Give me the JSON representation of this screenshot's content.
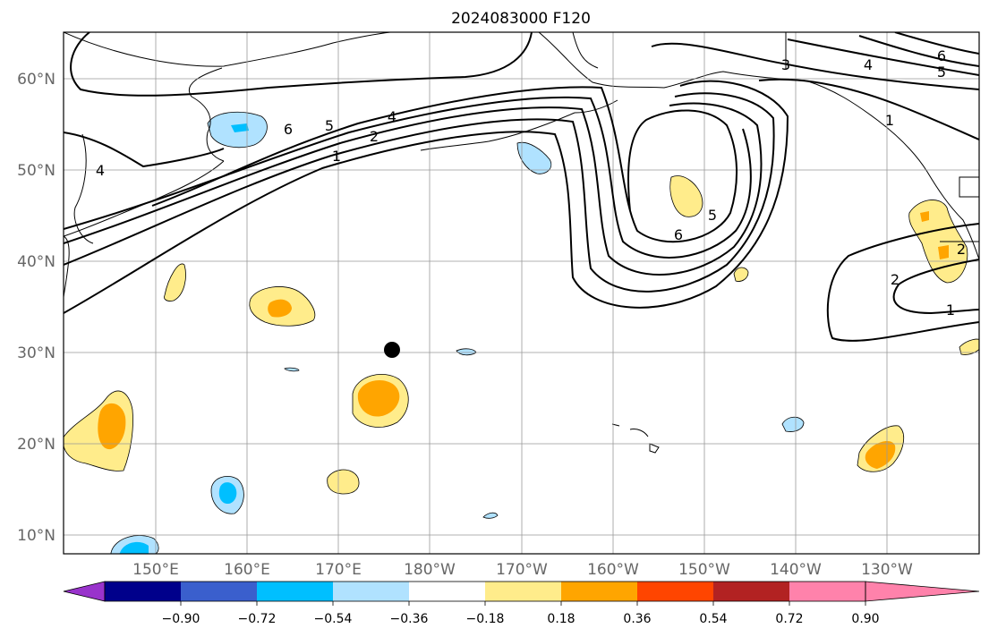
{
  "title": "2024083000 F120",
  "lat_labels": [
    "60°N",
    "50°N",
    "40°N",
    "30°N",
    "20°N",
    "10°N"
  ],
  "lon_labels": [
    "150°E",
    "160°E",
    "170°E",
    "180°W",
    "170°W",
    "160°W",
    "150°W",
    "140°W",
    "130°W"
  ],
  "colorbar": {
    "ticks": [
      "−0.90",
      "−0.72",
      "−0.54",
      "−0.36",
      "−0.18",
      "0.18",
      "0.36",
      "0.54",
      "0.72",
      "0.90"
    ],
    "colors": [
      "#9933cc",
      "#00008b",
      "#3a5fcd",
      "#00bfff",
      "#b0e2ff",
      "#ffffff",
      "#ffec8b",
      "#ffa500",
      "#ff4500",
      "#b22222",
      "#ff82ab"
    ]
  },
  "contour_labels": [
    {
      "id": "6a",
      "text": "6"
    },
    {
      "id": "5a",
      "text": "5"
    },
    {
      "id": "4a",
      "text": "4"
    },
    {
      "id": "2a",
      "text": "2"
    },
    {
      "id": "1a",
      "text": "1"
    },
    {
      "id": "4b",
      "text": "4"
    },
    {
      "id": "3c",
      "text": "3"
    },
    {
      "id": "4c",
      "text": "4"
    },
    {
      "id": "6c",
      "text": "6"
    },
    {
      "id": "5c",
      "text": "5"
    },
    {
      "id": "6d",
      "text": "6"
    },
    {
      "id": "5d",
      "text": "5"
    },
    {
      "id": "2e",
      "text": "2"
    },
    {
      "id": "1e",
      "text": "1"
    },
    {
      "id": "2f",
      "text": "2"
    },
    {
      "id": "1g",
      "text": "1"
    }
  ]
}
